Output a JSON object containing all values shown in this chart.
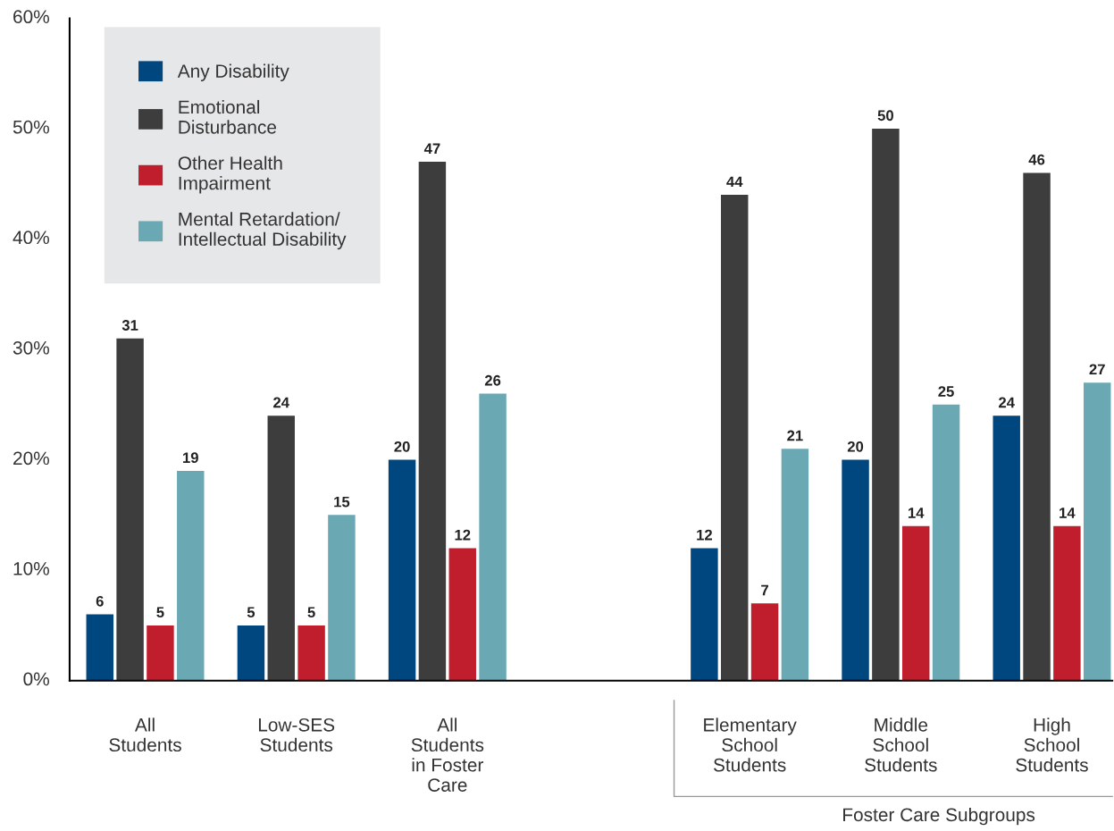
{
  "chart_data": {
    "type": "bar",
    "categories": [
      "All\nStudents",
      "Low-SES\nStudents",
      "All\nStudents\nin Foster\nCare",
      null,
      "Elementary\nSchool\nStudents",
      "Middle\nSchool\nStudents",
      "High\nSchool\nStudents"
    ],
    "series": [
      {
        "name": "Any Disability",
        "color": "#00467f",
        "values": [
          6,
          5,
          20,
          null,
          12,
          20,
          24
        ]
      },
      {
        "name": "Emotional\nDisturbance",
        "color": "#3d3d3d",
        "values": [
          31,
          24,
          47,
          null,
          44,
          50,
          46
        ]
      },
      {
        "name": "Other Health\nImpairment",
        "color": "#c01e2d",
        "values": [
          5,
          5,
          12,
          null,
          7,
          14,
          14
        ]
      },
      {
        "name": "Mental Retardation/\nIntellectual Disability",
        "color": "#6aa9b4",
        "values": [
          19,
          15,
          26,
          null,
          21,
          25,
          27
        ]
      }
    ],
    "ylim": [
      0,
      60
    ],
    "yticks": [
      {
        "value": 0,
        "label": "0%"
      },
      {
        "value": 10,
        "label": "10%"
      },
      {
        "value": 20,
        "label": "20%"
      },
      {
        "value": 30,
        "label": "30%"
      },
      {
        "value": 40,
        "label": "40%"
      },
      {
        "value": 50,
        "label": "50%"
      },
      {
        "value": 60,
        "label": "60%"
      }
    ],
    "data_labels": true,
    "legend": "top left",
    "grid": false,
    "annotations": [
      "Foster Care Subgroups"
    ]
  }
}
